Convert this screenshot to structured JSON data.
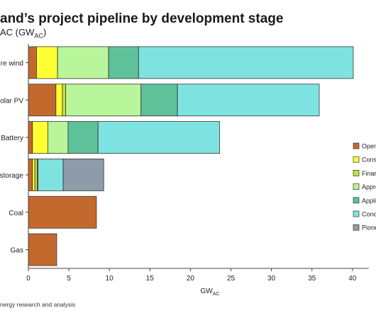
{
  "title": "and’s project pipeline by development stage",
  "subtitle_main": "AC (GW",
  "subtitle_sub": "AC",
  "subtitle_tail": ")",
  "footnote": "nergy research and analysis",
  "colors": {
    "Operating": "#c4692d",
    "Construction": "#ffff33",
    "Financing": "#c6e03c",
    "Approved": "#b9f59a",
    "Application": "#5ec19a",
    "Concept": "#7ee3e0",
    "Pioneer": "#8e9ba8"
  },
  "chart_data": {
    "type": "bar",
    "orientation": "horizontal",
    "stacked": true,
    "title": "and’s project pipeline by development stage",
    "xlabel": "GW",
    "xlabel_sub": "AC",
    "ylabel": "",
    "xlim": [
      0,
      42
    ],
    "xticks": [
      0,
      5,
      10,
      15,
      20,
      25,
      30,
      35,
      40
    ],
    "grid": false,
    "legend_position": "right",
    "categories": [
      "re wind",
      "olar PV",
      "Battery",
      "storage",
      "Coal",
      "Gas"
    ],
    "legend_labels": [
      "Oper",
      "Const",
      "Finar",
      "Appro",
      "Appli",
      "Conc",
      "Pione"
    ],
    "series": [
      {
        "name": "Oper",
        "color_key": "Operating",
        "values": [
          1.0,
          3.4,
          0.5,
          0.5,
          8.4,
          3.5
        ]
      },
      {
        "name": "Const",
        "color_key": "Construction",
        "values": [
          2.6,
          0.8,
          1.9,
          0.3,
          0,
          0
        ]
      },
      {
        "name": "Finar",
        "color_key": "Financing",
        "values": [
          0,
          0.4,
          0,
          0.3,
          0,
          0
        ]
      },
      {
        "name": "Appro",
        "color_key": "Approved",
        "values": [
          6.3,
          9.3,
          2.5,
          0.1,
          0,
          0
        ]
      },
      {
        "name": "Appli",
        "color_key": "Application",
        "values": [
          3.7,
          4.5,
          3.7,
          0,
          0,
          0
        ]
      },
      {
        "name": "Conc",
        "color_key": "Concept",
        "values": [
          26.5,
          17.5,
          15.0,
          3.1,
          0,
          0
        ]
      },
      {
        "name": "Pione",
        "color_key": "Pioneer",
        "values": [
          0,
          0,
          0,
          5.0,
          0,
          0
        ]
      }
    ]
  }
}
